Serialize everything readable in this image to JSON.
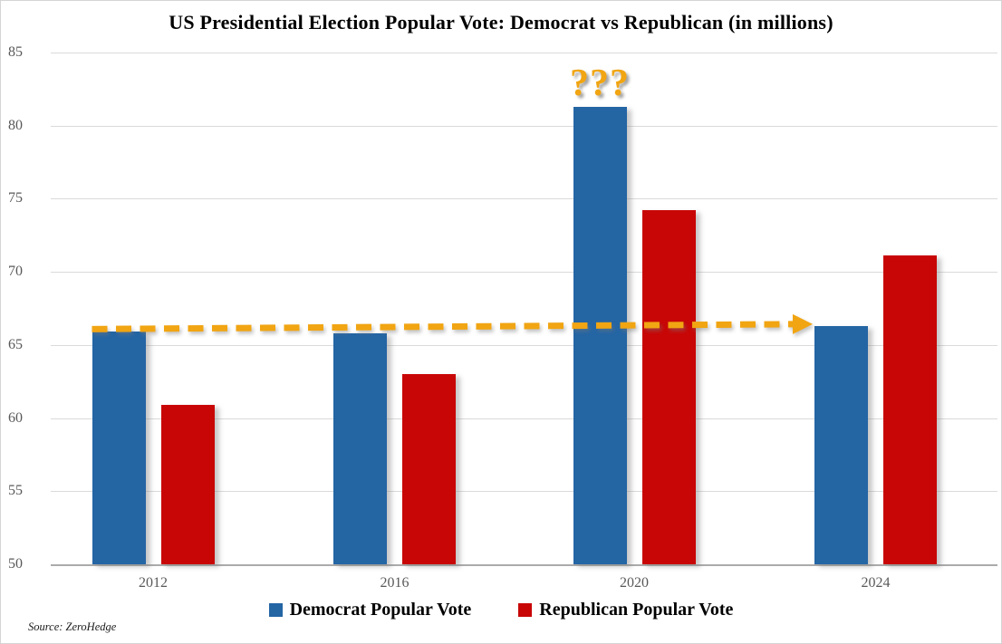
{
  "page": {
    "source_note": "Source: ZeroHedge"
  },
  "chart_data": {
    "type": "bar",
    "title": "US Presidential Election Popular Vote: Democrat vs Republican (in millions)",
    "categories": [
      "2012",
      "2016",
      "2020",
      "2024"
    ],
    "series": [
      {
        "name": "Democrat Popular Vote",
        "color": "#2465A4",
        "values": [
          65.9,
          65.8,
          81.3,
          66.3
        ]
      },
      {
        "name": "Republican Popular Vote",
        "color": "#C80606",
        "values": [
          60.9,
          63.0,
          74.2,
          71.1
        ]
      }
    ],
    "xlabel": "",
    "ylabel": "",
    "ylim": [
      50,
      85
    ],
    "yticks": [
      50,
      55,
      60,
      65,
      70,
      75,
      80,
      85
    ],
    "grid": true,
    "legend_position": "bottom",
    "tick_color": "#595959",
    "gridline_color": "#dadada",
    "annotation_color": "#F1A512",
    "annotations": [
      {
        "type": "text",
        "text": "???",
        "category": "2020",
        "series": "Democrat Popular Vote",
        "position": "above-bar"
      },
      {
        "type": "dashed-arrow",
        "from": {
          "category": "2012",
          "series": "Democrat Popular Vote",
          "value": 65.9
        },
        "to": {
          "category": "2024",
          "series": "Democrat Popular Vote",
          "value": 66.3
        }
      }
    ]
  }
}
